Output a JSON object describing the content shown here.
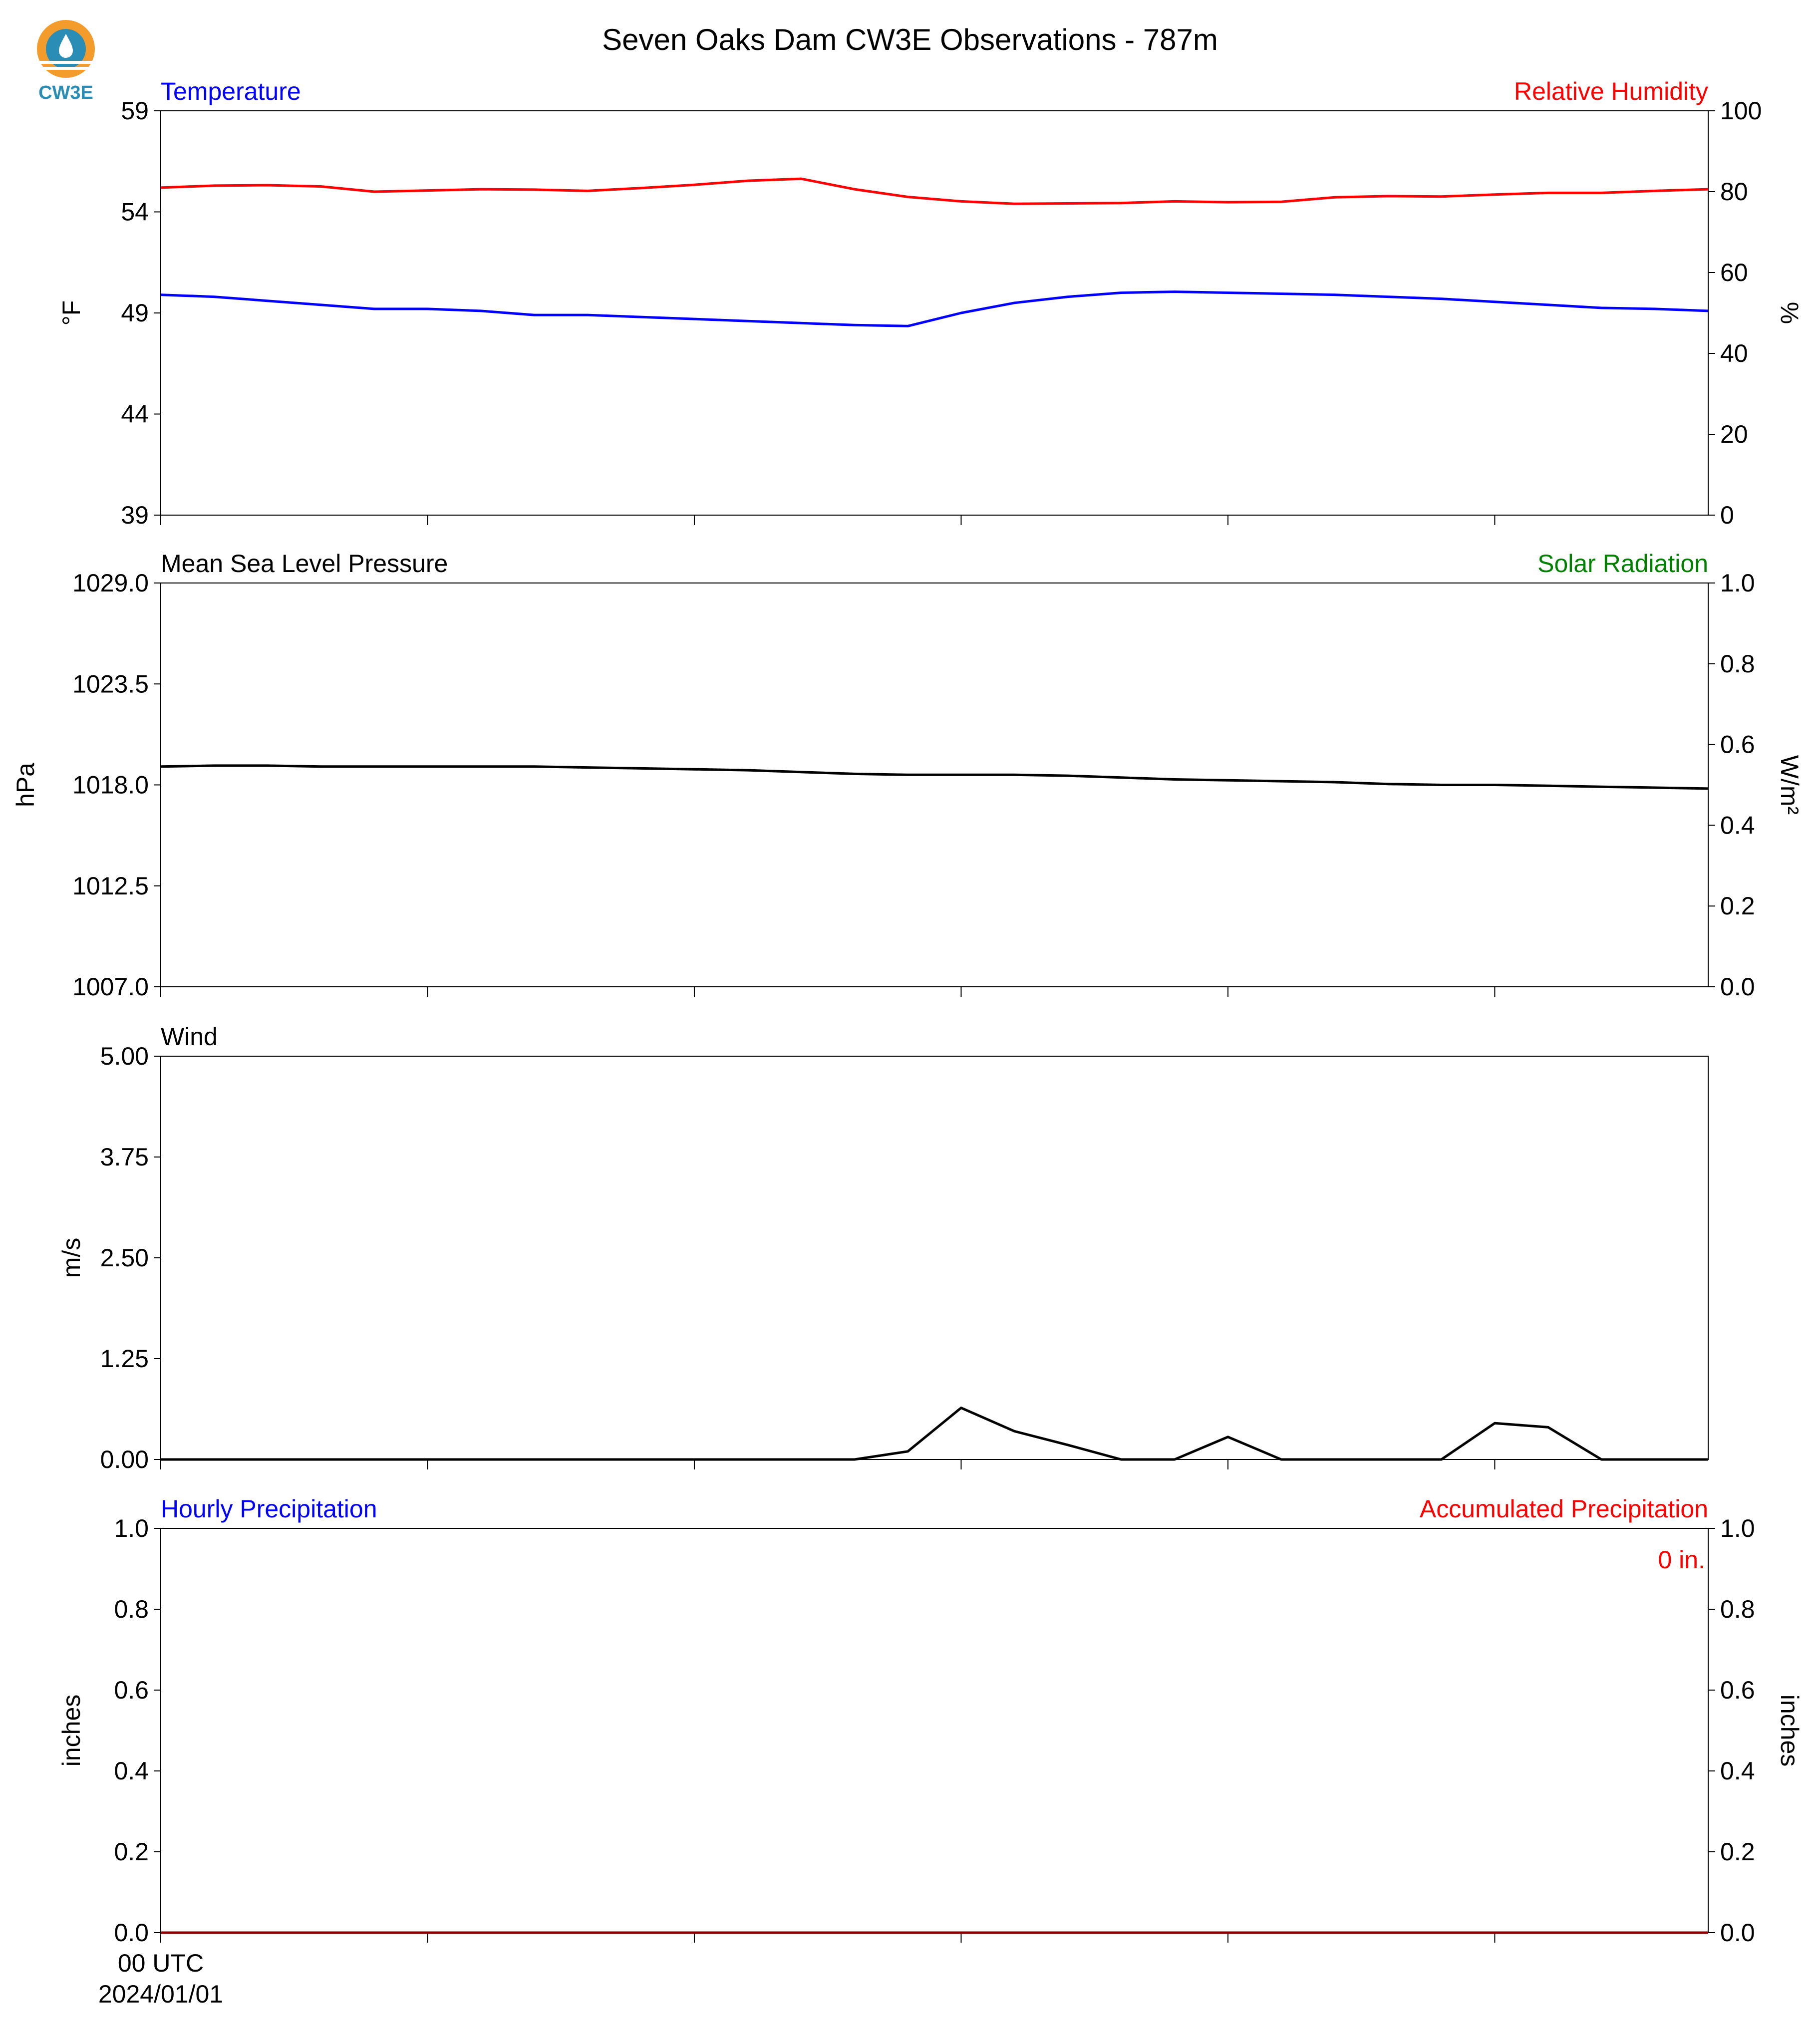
{
  "title": "Seven Oaks Dam CW3E Observations - 787m",
  "logo": {
    "text": "CW3E",
    "icon": "cw3e-logo-icon",
    "colors": {
      "sun": "#f39c2b",
      "drop": "#2a8db5",
      "text": "#2a8db5"
    }
  },
  "colors": {
    "blue": "#0000ff",
    "red": "#ff0000",
    "black": "#000000",
    "green": "#008000",
    "dark_red": "#8b0000"
  },
  "chart_data": [
    {
      "id": "temp_rh",
      "type": "line",
      "left_title": "Temperature",
      "right_title": "Relative Humidity",
      "left_title_color": "#0000ff",
      "right_title_color": "#ff0000",
      "ylabel": "°F",
      "ylabel_right": "%",
      "ylim": [
        39,
        59
      ],
      "yticks": [
        "59",
        "54",
        "49",
        "44",
        "39"
      ],
      "ylim_right": [
        0,
        100
      ],
      "yticks_right": [
        "100",
        "80",
        "60",
        "40",
        "20",
        "0"
      ],
      "x_hours": [
        0,
        1,
        2,
        3,
        4,
        5,
        6,
        7,
        8,
        9,
        10,
        11,
        12,
        13,
        14,
        15,
        16,
        17,
        18,
        19,
        20,
        21,
        22,
        23,
        24,
        25,
        26,
        27,
        28,
        29
      ],
      "series": [
        {
          "axis": "left",
          "color": "#0000ff",
          "values": [
            49.9,
            49.8,
            49.6,
            49.4,
            49.2,
            49.2,
            49.1,
            48.9,
            48.9,
            48.8,
            48.7,
            48.6,
            48.5,
            48.4,
            48.35,
            49.0,
            49.5,
            49.8,
            50.0,
            50.05,
            50.0,
            49.95,
            49.9,
            49.8,
            49.7,
            49.55,
            49.4,
            49.25,
            49.2,
            49.1
          ]
        },
        {
          "axis": "right",
          "color": "#ff0000",
          "values": [
            81.0,
            81.5,
            81.6,
            81.3,
            80.0,
            80.3,
            80.6,
            80.5,
            80.2,
            80.9,
            81.7,
            82.7,
            83.2,
            80.6,
            78.7,
            77.6,
            77.0,
            77.1,
            77.2,
            77.6,
            77.4,
            77.5,
            78.6,
            78.9,
            78.8,
            79.3,
            79.7,
            79.7,
            80.2,
            80.6
          ]
        }
      ]
    },
    {
      "id": "pressure_solar",
      "type": "line",
      "left_title": "Mean Sea Level Pressure",
      "right_title": "Solar Radiation",
      "left_title_color": "#000000",
      "right_title_color": "#008000",
      "ylabel": "hPa",
      "ylabel_right": "W/m²",
      "ylim": [
        1007.0,
        1029.0
      ],
      "yticks": [
        "1029.0",
        "1023.5",
        "1018.0",
        "1012.5",
        "1007.0"
      ],
      "ylim_right": [
        0.0,
        1.0
      ],
      "yticks_right": [
        "1.0",
        "0.8",
        "0.6",
        "0.4",
        "0.2",
        "0.0"
      ],
      "x_hours": [
        0,
        1,
        2,
        3,
        4,
        5,
        6,
        7,
        8,
        9,
        10,
        11,
        12,
        13,
        14,
        15,
        16,
        17,
        18,
        19,
        20,
        21,
        22,
        23,
        24,
        25,
        26,
        27,
        28,
        29
      ],
      "series": [
        {
          "axis": "left",
          "color": "#000000",
          "values": [
            1019.0,
            1019.05,
            1019.05,
            1019.0,
            1019.0,
            1019.0,
            1019.0,
            1019.0,
            1018.95,
            1018.9,
            1018.85,
            1018.8,
            1018.7,
            1018.6,
            1018.55,
            1018.55,
            1018.55,
            1018.5,
            1018.4,
            1018.3,
            1018.25,
            1018.2,
            1018.15,
            1018.05,
            1018.0,
            1018.0,
            1017.95,
            1017.9,
            1017.85,
            1017.8
          ]
        }
      ]
    },
    {
      "id": "wind",
      "type": "line",
      "left_title": "Wind",
      "right_title": "",
      "left_title_color": "#000000",
      "right_title_color": "#000000",
      "ylabel": "m/s",
      "ylabel_right": "",
      "ylim": [
        0.0,
        5.0
      ],
      "yticks": [
        "5.00",
        "3.75",
        "2.50",
        "1.25",
        "0.00"
      ],
      "ylim_right": null,
      "yticks_right": [],
      "x_hours": [
        0,
        1,
        2,
        3,
        4,
        5,
        6,
        7,
        8,
        9,
        10,
        11,
        12,
        13,
        14,
        15,
        16,
        17,
        18,
        19,
        20,
        21,
        22,
        23,
        24,
        25,
        26,
        27,
        28,
        29
      ],
      "series": [
        {
          "axis": "left",
          "color": "#000000",
          "values": [
            0,
            0,
            0,
            0,
            0,
            0,
            0,
            0,
            0,
            0,
            0,
            0,
            0,
            0,
            0.1,
            0.64,
            0.35,
            0.18,
            0,
            0,
            0.28,
            0,
            0,
            0,
            0,
            0.45,
            0.4,
            0,
            0,
            0
          ]
        }
      ]
    },
    {
      "id": "precip",
      "type": "line",
      "left_title": "Hourly Precipitation",
      "right_title": "Accumulated Precipitation",
      "left_title_color": "#0000ff",
      "right_title_color": "#ff0000",
      "ylabel": "inches",
      "ylabel_right": "inches",
      "ylim": [
        0.0,
        1.0
      ],
      "yticks": [
        "1.0",
        "0.8",
        "0.6",
        "0.4",
        "0.2",
        "0.0"
      ],
      "ylim_right": [
        0.0,
        1.0
      ],
      "yticks_right": [
        "1.0",
        "0.8",
        "0.6",
        "0.4",
        "0.2",
        "0.0"
      ],
      "annotation": "0 in.",
      "x_hours": [
        0,
        29
      ],
      "series": [
        {
          "axis": "right",
          "color": "#8b0000",
          "values": [
            0,
            0
          ]
        }
      ]
    }
  ],
  "xaxis": {
    "range_hours": [
      0,
      29
    ],
    "tick_hours": [
      0,
      5,
      10,
      15,
      20,
      25
    ],
    "first_tick_label_line1": "00 UTC",
    "first_tick_label_line2": "2024/01/01"
  }
}
